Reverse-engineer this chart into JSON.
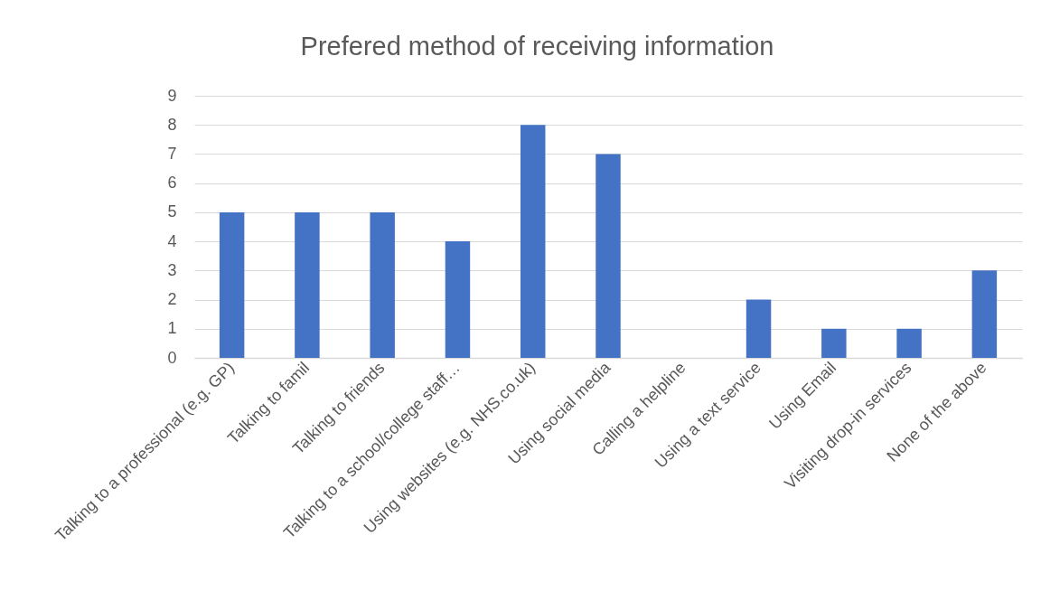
{
  "chart_data": {
    "type": "bar",
    "title": "Prefered method of receiving information",
    "categories": [
      "Talking to a professional (e.g. GP)",
      "Talking to famil",
      "Talking to friends",
      "Talking to a school/college staff…",
      "Using websites (e.g. NHS.co.uk)",
      "Using social media",
      "Calling a helpline",
      "Using a text service",
      "Using Email",
      "Visiting drop-in services",
      "None of the above"
    ],
    "values": [
      5,
      5,
      5,
      4,
      8,
      7,
      0,
      2,
      1,
      1,
      3
    ],
    "color": "#4472c4",
    "ylim": [
      0,
      9
    ],
    "yticks": [
      0,
      1,
      2,
      3,
      4,
      5,
      6,
      7,
      8,
      9
    ],
    "grid": "y"
  }
}
